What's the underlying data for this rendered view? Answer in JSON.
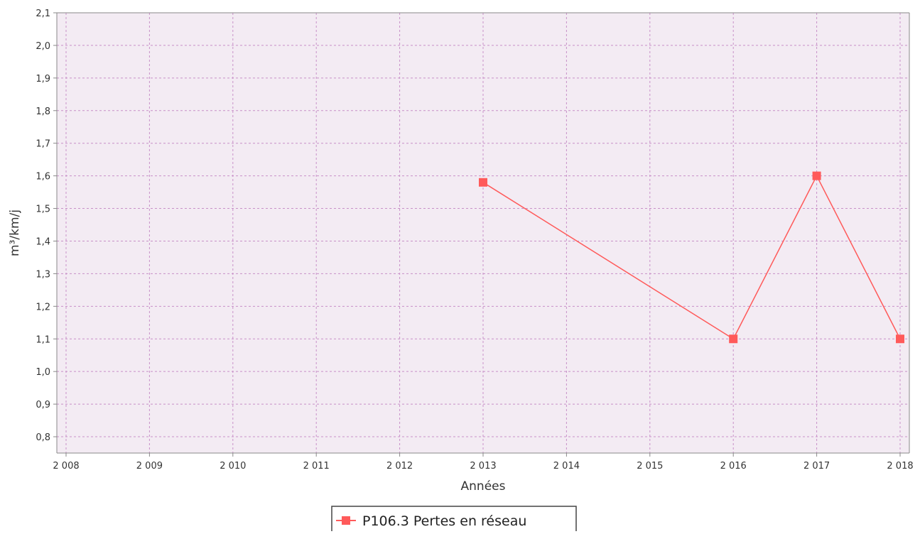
{
  "chart_data": {
    "type": "line",
    "title": "",
    "xlabel": "Années",
    "ylabel": "m³/km/j",
    "x_ticks": [
      "2 008",
      "2 009",
      "2 010",
      "2 011",
      "2 012",
      "2 013",
      "2 014",
      "2 015",
      "2 016",
      "2 017",
      "2 018"
    ],
    "y_ticks": [
      "0,8",
      "0,9",
      "1,0",
      "1,1",
      "1,2",
      "1,3",
      "1,4",
      "1,5",
      "1,6",
      "1,7",
      "1,8",
      "1,9",
      "2,0",
      "2,1"
    ],
    "xlim": [
      2008,
      2018
    ],
    "ylim": [
      0.75,
      2.1
    ],
    "grid": true,
    "legend_position": "bottom-center",
    "series": [
      {
        "name": "P106.3 Pertes en réseau",
        "color": "#ff5a5a",
        "x": [
          2013,
          2016,
          2017,
          2018
        ],
        "y": [
          1.58,
          1.1,
          1.6,
          1.1
        ]
      }
    ]
  },
  "colors": {
    "plot_background": "#f3ebf3",
    "grid": "#c890c8",
    "axis": "#888888"
  }
}
